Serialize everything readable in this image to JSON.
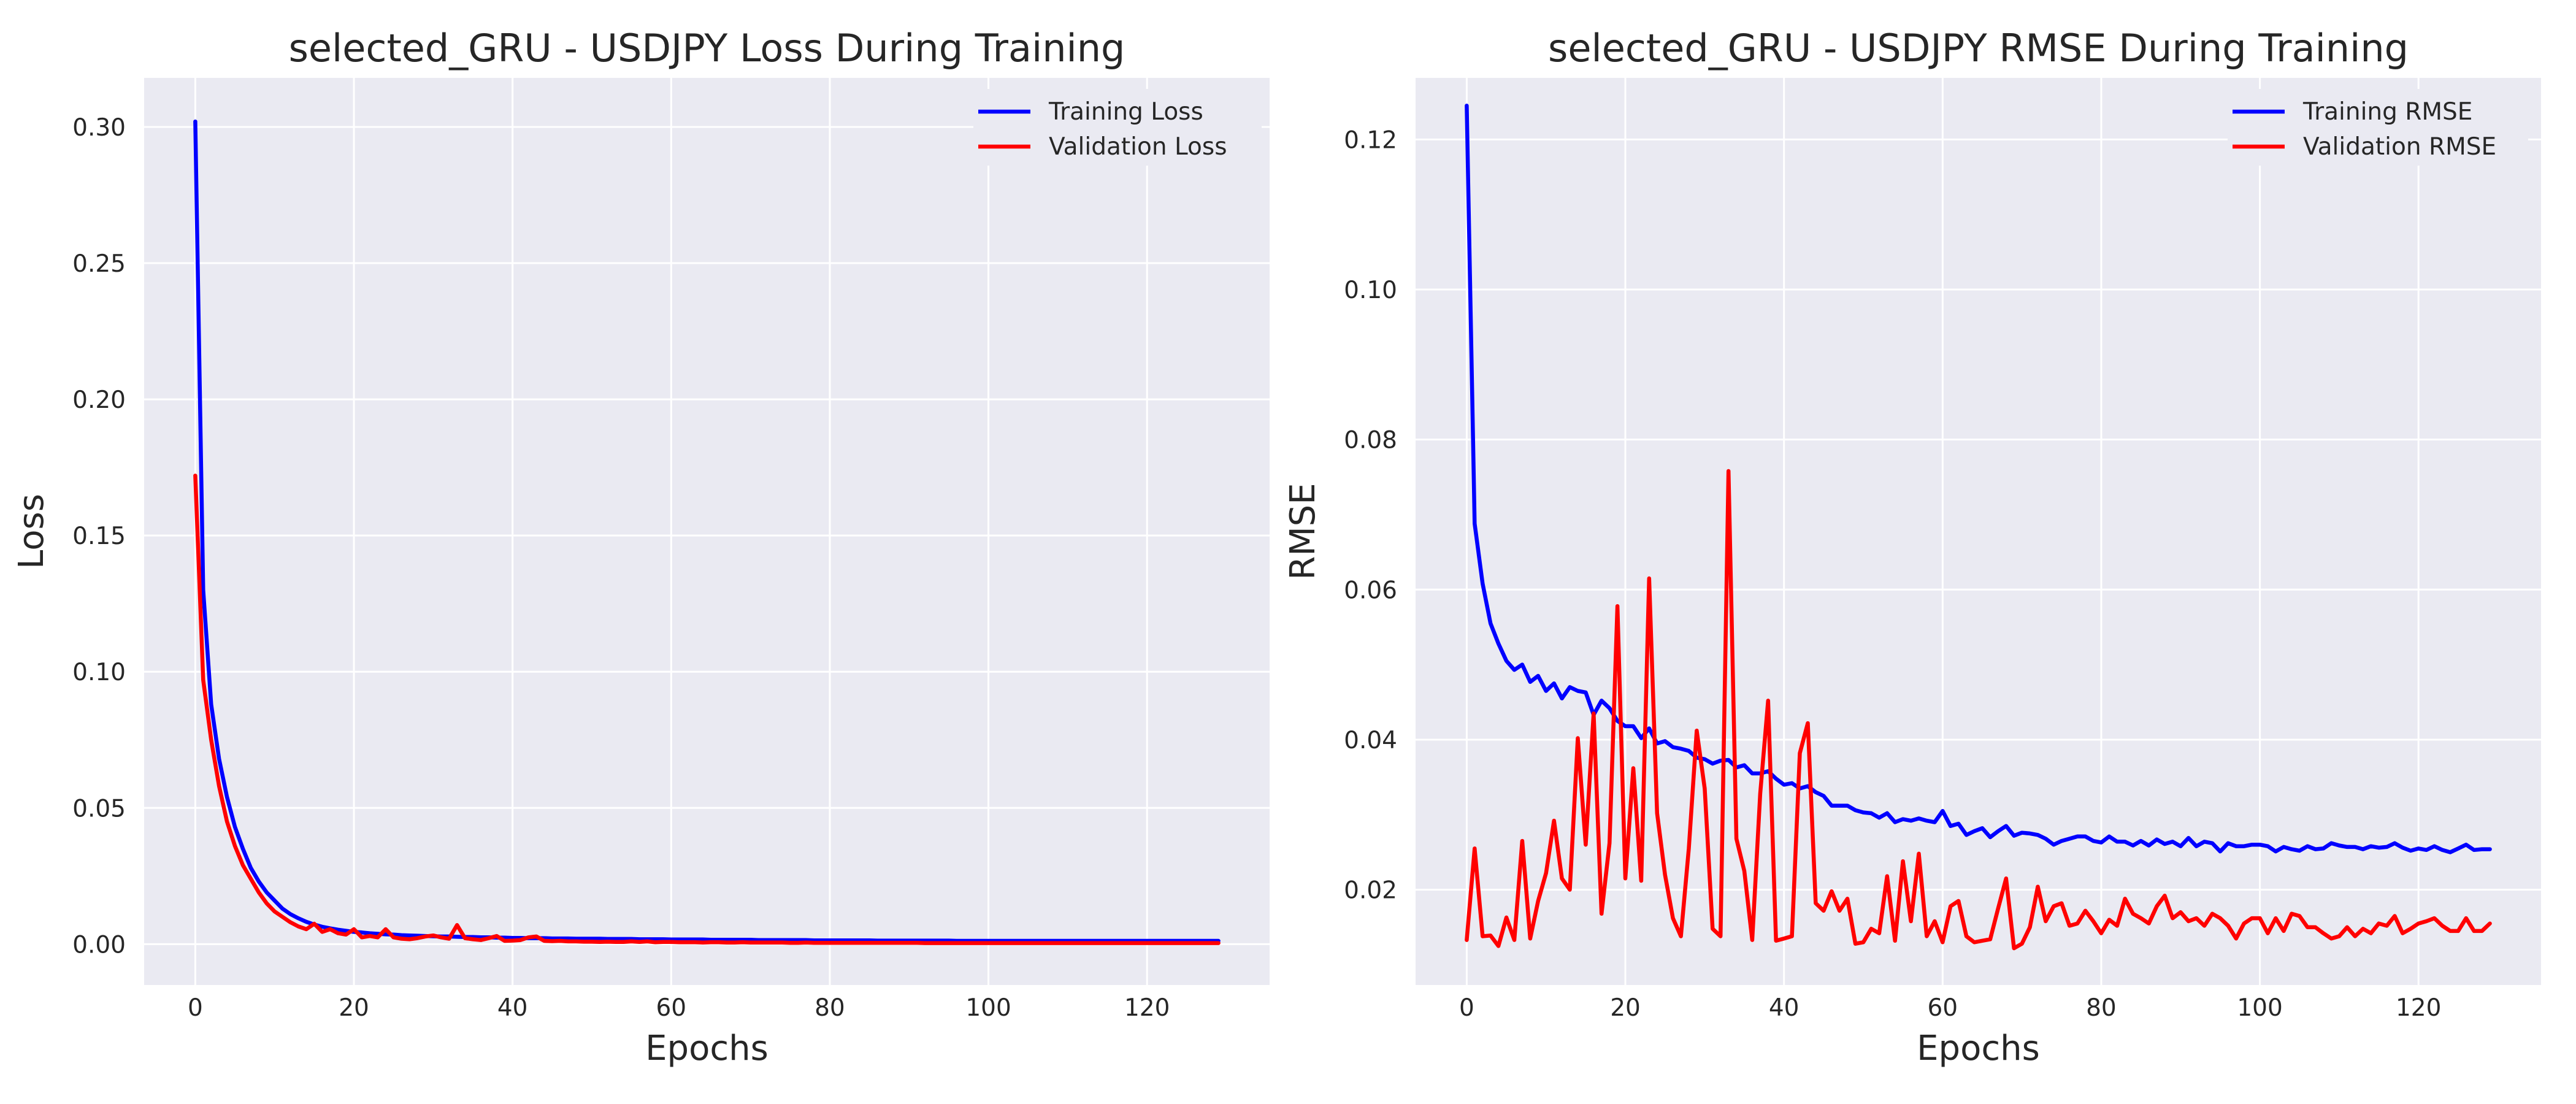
{
  "chart_data": [
    {
      "type": "line",
      "title": "selected_GRU - USDJPY Loss During Training",
      "xlabel": "Epochs",
      "ylabel": "Loss",
      "xlim": [
        -6.45,
        135.45
      ],
      "ylim": [
        -0.015,
        0.318
      ],
      "xticks": [
        0,
        20,
        40,
        60,
        80,
        100,
        120
      ],
      "xtick_labels": [
        "0",
        "20",
        "40",
        "60",
        "80",
        "100",
        "120"
      ],
      "yticks": [
        0.0,
        0.05,
        0.1,
        0.15,
        0.2,
        0.25,
        0.3
      ],
      "ytick_labels": [
        "0.00",
        "0.05",
        "0.10",
        "0.15",
        "0.20",
        "0.25",
        "0.30"
      ],
      "grid": true,
      "legend_position": "top-right",
      "colors": {
        "background": "#eaeaf2",
        "grid": "#ffffff",
        "Training Loss": "#0000ff",
        "Validation Loss": "#ff0000"
      },
      "x": [
        0,
        1,
        2,
        3,
        4,
        5,
        6,
        7,
        8,
        9,
        10,
        11,
        12,
        13,
        14,
        15,
        16,
        17,
        18,
        19,
        20,
        21,
        22,
        23,
        24,
        25,
        26,
        27,
        28,
        29,
        30,
        31,
        32,
        33,
        34,
        35,
        36,
        37,
        38,
        39,
        40,
        41,
        42,
        43,
        44,
        45,
        46,
        47,
        48,
        49,
        50,
        51,
        52,
        53,
        54,
        55,
        56,
        57,
        58,
        59,
        60,
        61,
        62,
        63,
        64,
        65,
        66,
        67,
        68,
        69,
        70,
        71,
        72,
        73,
        74,
        75,
        76,
        77,
        78,
        79,
        80,
        81,
        82,
        83,
        84,
        85,
        86,
        87,
        88,
        89,
        90,
        91,
        92,
        93,
        94,
        95,
        96,
        97,
        98,
        99,
        100,
        101,
        102,
        103,
        104,
        105,
        106,
        107,
        108,
        109,
        110,
        111,
        112,
        113,
        114,
        115,
        116,
        117,
        118,
        119,
        120,
        121,
        122,
        123,
        124,
        125,
        126,
        127,
        128,
        129
      ],
      "series": [
        {
          "name": "Training Loss",
          "values": [
            0.302,
            0.13,
            0.088,
            0.068,
            0.054,
            0.043,
            0.035,
            0.028,
            0.023,
            0.019,
            0.016,
            0.013,
            0.011,
            0.0095,
            0.0082,
            0.0072,
            0.0064,
            0.0058,
            0.0053,
            0.0049,
            0.0045,
            0.0043,
            0.004,
            0.0038,
            0.0036,
            0.0035,
            0.0033,
            0.0032,
            0.0031,
            0.003,
            0.0029,
            0.0028,
            0.0028,
            0.0027,
            0.0026,
            0.0026,
            0.0025,
            0.0025,
            0.0024,
            0.0024,
            0.0023,
            0.0023,
            0.0022,
            0.0022,
            0.0022,
            0.0021,
            0.0021,
            0.0021,
            0.002,
            0.002,
            0.002,
            0.002,
            0.0019,
            0.0019,
            0.0019,
            0.0019,
            0.0018,
            0.0018,
            0.0018,
            0.0018,
            0.0017,
            0.0017,
            0.0017,
            0.0017,
            0.0017,
            0.0016,
            0.0016,
            0.0016,
            0.0016,
            0.0016,
            0.0016,
            0.0015,
            0.0015,
            0.0015,
            0.0015,
            0.0015,
            0.0015,
            0.0015,
            0.0014,
            0.0014,
            0.0014,
            0.0014,
            0.0014,
            0.0014,
            0.0014,
            0.0014,
            0.0013,
            0.0013,
            0.0013,
            0.0013,
            0.0013,
            0.0013,
            0.0013,
            0.0013,
            0.0013,
            0.0013,
            0.0012,
            0.0012,
            0.0012,
            0.0012,
            0.0012,
            0.0012,
            0.0012,
            0.0012,
            0.0012,
            0.0012,
            0.0012,
            0.0012,
            0.0012,
            0.0012,
            0.0012,
            0.0012,
            0.0012,
            0.0012,
            0.0012,
            0.0012,
            0.0012,
            0.0012,
            0.0012,
            0.0012,
            0.0012,
            0.0012,
            0.0012,
            0.0012,
            0.0012,
            0.0012,
            0.0012,
            0.0012,
            0.0012,
            0.0012
          ]
        },
        {
          "name": "Validation Loss",
          "values": [
            0.172,
            0.097,
            0.075,
            0.058,
            0.045,
            0.036,
            0.029,
            0.024,
            0.019,
            0.015,
            0.012,
            0.01,
            0.008,
            0.0065,
            0.0055,
            0.0075,
            0.0045,
            0.0055,
            0.004,
            0.0035,
            0.0055,
            0.0025,
            0.003,
            0.0025,
            0.0055,
            0.0025,
            0.002,
            0.0018,
            0.0022,
            0.0028,
            0.0032,
            0.0025,
            0.002,
            0.007,
            0.0022,
            0.0018,
            0.0015,
            0.0022,
            0.003,
            0.0012,
            0.0013,
            0.0015,
            0.0025,
            0.0028,
            0.0012,
            0.0011,
            0.0012,
            0.001,
            0.001,
            0.0009,
            0.0009,
            0.0008,
            0.0009,
            0.0008,
            0.0008,
            0.001,
            0.0008,
            0.001,
            0.0007,
            0.0008,
            0.0008,
            0.0007,
            0.0007,
            0.0007,
            0.0006,
            0.0007,
            0.0007,
            0.0006,
            0.0006,
            0.0007,
            0.0006,
            0.0006,
            0.0006,
            0.0006,
            0.0006,
            0.0005,
            0.0005,
            0.0006,
            0.0005,
            0.0005,
            0.0005,
            0.0005,
            0.0005,
            0.0005,
            0.0005,
            0.0005,
            0.0005,
            0.0005,
            0.0005,
            0.0005,
            0.0005,
            0.0005,
            0.0004,
            0.0004,
            0.0004,
            0.0004,
            0.0004,
            0.0004,
            0.0004,
            0.0004,
            0.0004,
            0.0004,
            0.0004,
            0.0004,
            0.0004,
            0.0004,
            0.0004,
            0.0004,
            0.0004,
            0.0004,
            0.0004,
            0.0004,
            0.0004,
            0.0004,
            0.0004,
            0.0004,
            0.0004,
            0.0004,
            0.0004,
            0.0004,
            0.0004,
            0.0004,
            0.0004,
            0.0004,
            0.0004,
            0.0004,
            0.0004,
            0.0004,
            0.0004,
            0.0004
          ]
        }
      ]
    },
    {
      "type": "line",
      "title": "selected_GRU - USDJPY RMSE During Training",
      "xlabel": "Epochs",
      "ylabel": "RMSE",
      "xlim": [
        -6.45,
        135.45
      ],
      "ylim": [
        0.0073,
        0.1282
      ],
      "xticks": [
        0,
        20,
        40,
        60,
        80,
        100,
        120
      ],
      "xtick_labels": [
        "0",
        "20",
        "40",
        "60",
        "80",
        "100",
        "120"
      ],
      "yticks": [
        0.02,
        0.04,
        0.06,
        0.08,
        0.1,
        0.12
      ],
      "ytick_labels": [
        "0.02",
        "0.04",
        "0.06",
        "0.08",
        "0.10",
        "0.12"
      ],
      "grid": true,
      "legend_position": "top-right",
      "colors": {
        "background": "#eaeaf2",
        "grid": "#ffffff",
        "Training RMSE": "#0000ff",
        "Validation RMSE": "#ff0000"
      },
      "x": [
        0,
        1,
        2,
        3,
        4,
        5,
        6,
        7,
        8,
        9,
        10,
        11,
        12,
        13,
        14,
        15,
        16,
        17,
        18,
        19,
        20,
        21,
        22,
        23,
        24,
        25,
        26,
        27,
        28,
        29,
        30,
        31,
        32,
        33,
        34,
        35,
        36,
        37,
        38,
        39,
        40,
        41,
        42,
        43,
        44,
        45,
        46,
        47,
        48,
        49,
        50,
        51,
        52,
        53,
        54,
        55,
        56,
        57,
        58,
        59,
        60,
        61,
        62,
        63,
        64,
        65,
        66,
        67,
        68,
        69,
        70,
        71,
        72,
        73,
        74,
        75,
        76,
        77,
        78,
        79,
        80,
        81,
        82,
        83,
        84,
        85,
        86,
        87,
        88,
        89,
        90,
        91,
        92,
        93,
        94,
        95,
        96,
        97,
        98,
        99,
        100,
        101,
        102,
        103,
        104,
        105,
        106,
        107,
        108,
        109,
        110,
        111,
        112,
        113,
        114,
        115,
        116,
        117,
        118,
        119,
        120,
        121,
        122,
        123,
        124,
        125,
        126,
        127,
        128,
        129
      ],
      "series": [
        {
          "name": "Training RMSE",
          "values": [
            0.1245,
            0.0688,
            0.0608,
            0.0555,
            0.0528,
            0.0505,
            0.0493,
            0.05,
            0.0477,
            0.0485,
            0.0465,
            0.0475,
            0.0455,
            0.047,
            0.0465,
            0.0463,
            0.0433,
            0.0452,
            0.0442,
            0.0425,
            0.0418,
            0.0418,
            0.0402,
            0.0415,
            0.0395,
            0.0398,
            0.039,
            0.0388,
            0.0385,
            0.0376,
            0.0374,
            0.0368,
            0.0372,
            0.0373,
            0.0363,
            0.0366,
            0.0355,
            0.0355,
            0.0358,
            0.0348,
            0.034,
            0.0342,
            0.0335,
            0.0338,
            0.033,
            0.0325,
            0.0312,
            0.0312,
            0.0312,
            0.0306,
            0.0303,
            0.0302,
            0.0296,
            0.0302,
            0.029,
            0.0294,
            0.0292,
            0.0295,
            0.0292,
            0.029,
            0.0305,
            0.0285,
            0.0288,
            0.0273,
            0.0278,
            0.0282,
            0.027,
            0.0278,
            0.0285,
            0.0272,
            0.0276,
            0.0275,
            0.0273,
            0.0268,
            0.026,
            0.0265,
            0.0268,
            0.0271,
            0.0271,
            0.0265,
            0.0263,
            0.0271,
            0.0264,
            0.0264,
            0.0259,
            0.0265,
            0.0259,
            0.0267,
            0.0261,
            0.0264,
            0.0258,
            0.0269,
            0.0258,
            0.0264,
            0.0262,
            0.0251,
            0.0262,
            0.0258,
            0.0258,
            0.026,
            0.026,
            0.0258,
            0.0251,
            0.0257,
            0.0254,
            0.0252,
            0.0258,
            0.0254,
            0.0255,
            0.0262,
            0.0259,
            0.0257,
            0.0257,
            0.0254,
            0.0258,
            0.0256,
            0.0257,
            0.0262,
            0.0256,
            0.0252,
            0.0255,
            0.0253,
            0.0258,
            0.0253,
            0.025,
            0.0255,
            0.026,
            0.0253,
            0.0254,
            0.0254
          ]
        },
        {
          "name": "Validation RMSE",
          "values": [
            0.0133,
            0.0255,
            0.0138,
            0.0139,
            0.0125,
            0.0163,
            0.0133,
            0.0265,
            0.0135,
            0.0185,
            0.0222,
            0.0292,
            0.0215,
            0.02,
            0.0402,
            0.026,
            0.0435,
            0.0168,
            0.0262,
            0.0578,
            0.0215,
            0.0362,
            0.0212,
            0.0615,
            0.0302,
            0.022,
            0.0162,
            0.0138,
            0.0255,
            0.0412,
            0.0335,
            0.0148,
            0.0138,
            0.0758,
            0.0268,
            0.0225,
            0.0133,
            0.0328,
            0.0452,
            0.0132,
            0.0135,
            0.0138,
            0.0382,
            0.0422,
            0.0182,
            0.0172,
            0.0198,
            0.0172,
            0.0188,
            0.0128,
            0.013,
            0.0148,
            0.0142,
            0.0218,
            0.0132,
            0.0238,
            0.0158,
            0.0248,
            0.0138,
            0.0158,
            0.013,
            0.0178,
            0.0185,
            0.0138,
            0.013,
            0.0132,
            0.0134,
            0.0175,
            0.0215,
            0.0122,
            0.0128,
            0.015,
            0.0204,
            0.0158,
            0.0178,
            0.0182,
            0.0152,
            0.0155,
            0.0172,
            0.0158,
            0.0142,
            0.016,
            0.0152,
            0.0188,
            0.0168,
            0.0162,
            0.0155,
            0.0178,
            0.0192,
            0.0162,
            0.017,
            0.0158,
            0.0162,
            0.0152,
            0.0168,
            0.0162,
            0.0152,
            0.0135,
            0.0155,
            0.0162,
            0.0162,
            0.0142,
            0.0162,
            0.0145,
            0.0168,
            0.0165,
            0.015,
            0.015,
            0.0142,
            0.0135,
            0.0138,
            0.015,
            0.0138,
            0.0148,
            0.0142,
            0.0155,
            0.0152,
            0.0165,
            0.0142,
            0.0148,
            0.0155,
            0.0158,
            0.0162,
            0.0152,
            0.0145,
            0.0145,
            0.0162,
            0.0145,
            0.0145,
            0.0155
          ]
        }
      ]
    }
  ]
}
